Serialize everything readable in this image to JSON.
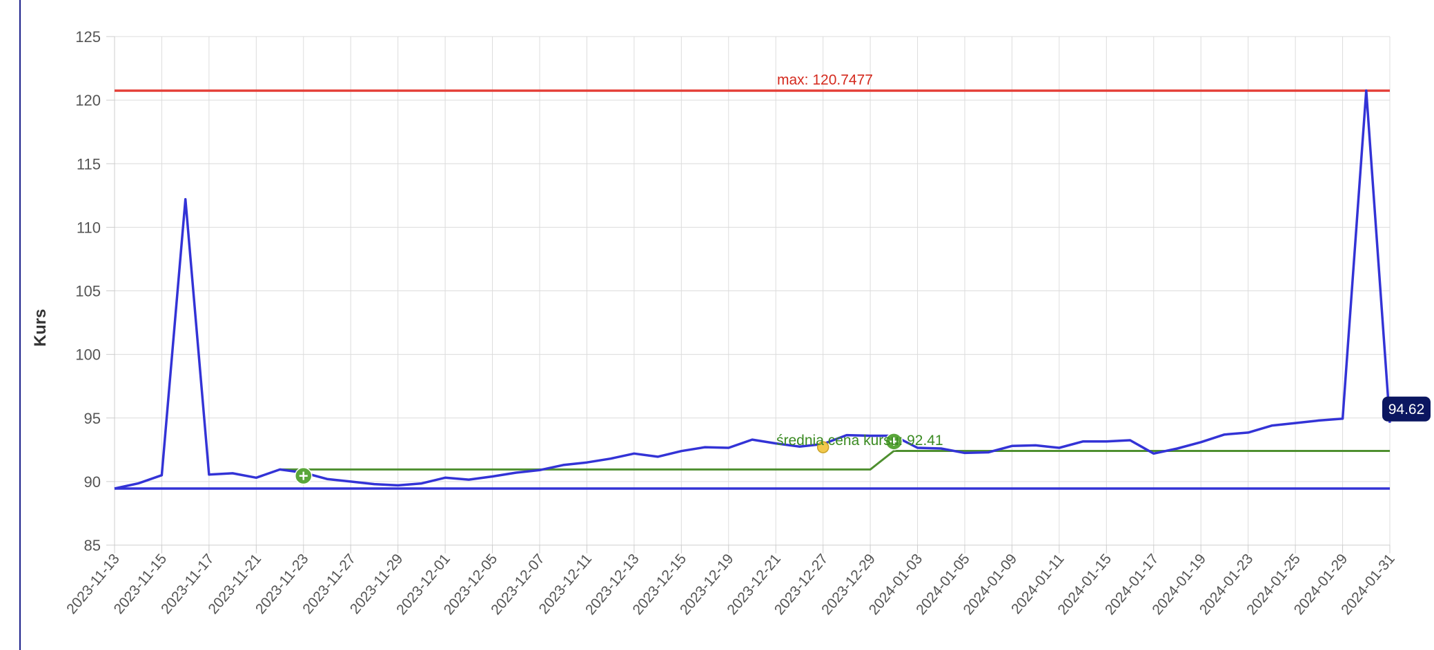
{
  "chart_data": {
    "type": "line",
    "ylabel": "Kurs",
    "xlabel": "",
    "ylim": [
      85,
      125
    ],
    "yticks": [
      85,
      90,
      95,
      100,
      105,
      110,
      115,
      120,
      125
    ],
    "xticks": [
      "2023-11-13",
      "2023-11-15",
      "2023-11-17",
      "2023-11-21",
      "2023-11-23",
      "2023-11-27",
      "2023-11-29",
      "2023-12-01",
      "2023-12-05",
      "2023-12-07",
      "2023-12-11",
      "2023-12-13",
      "2023-12-15",
      "2023-12-19",
      "2023-12-21",
      "2023-12-27",
      "2023-12-29",
      "2024-01-03",
      "2024-01-05",
      "2024-01-09",
      "2024-01-11",
      "2024-01-15",
      "2024-01-17",
      "2024-01-19",
      "2024-01-23",
      "2024-01-25",
      "2024-01-29",
      "2024-01-31"
    ],
    "grid": true,
    "series": [
      {
        "color": "#3333d6",
        "values": [
          89.45,
          89.85,
          90.5,
          112.2,
          90.55,
          90.65,
          90.3,
          90.95,
          90.7,
          90.2,
          90.0,
          89.8,
          89.7,
          89.85,
          90.3,
          90.15,
          90.4,
          90.7,
          90.9,
          91.3,
          91.5,
          91.8,
          92.2,
          91.95,
          92.4,
          92.7,
          92.65,
          93.3,
          93.0,
          92.75,
          92.95,
          93.65,
          93.6,
          93.6,
          92.65,
          92.6,
          92.25,
          92.3,
          92.8,
          92.85,
          92.65,
          93.15,
          93.15,
          93.25,
          92.2,
          92.6,
          93.1,
          93.7,
          93.85,
          94.4,
          94.6,
          94.8,
          94.95,
          120.75,
          94.62
        ]
      },
      {
        "color": "#4e8f2f",
        "values": [
          null,
          null,
          null,
          null,
          null,
          null,
          null,
          90.95,
          90.95,
          90.95,
          90.95,
          90.95,
          90.95,
          90.95,
          90.95,
          90.95,
          90.95,
          90.95,
          90.95,
          90.95,
          90.95,
          90.95,
          90.95,
          90.95,
          90.95,
          90.95,
          90.95,
          90.95,
          90.95,
          90.95,
          90.95,
          90.95,
          90.95,
          92.41,
          92.41,
          92.41,
          92.41,
          92.41,
          92.41,
          92.41,
          92.41,
          92.41,
          92.41,
          92.41,
          92.41,
          92.41,
          92.41,
          92.41,
          92.41,
          92.41,
          92.41,
          92.41,
          92.41,
          92.41,
          92.41
        ]
      }
    ],
    "reference_lines": [
      {
        "value": 120.7477,
        "color": "#e5413a",
        "label": "max: 120.7477"
      },
      {
        "value": 89.45,
        "color": "#3333d6",
        "label": ""
      }
    ],
    "annotations": {
      "avg_label": "średnia cena kursu: 92.41",
      "tooltip": "94.62",
      "buy_markers": [
        {
          "index": 8,
          "value": 90.45
        },
        {
          "index": 33,
          "value": 93.15
        }
      ],
      "neutral_marker": {
        "index": 30,
        "value": 92.7
      }
    }
  }
}
